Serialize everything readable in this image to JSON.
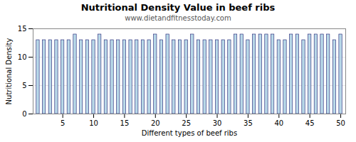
{
  "chart_data": {
    "type": "bar",
    "title": "Nutritional Density Value in beef ribs",
    "subtitle": "www.dietandfitnesstoday.com",
    "xlabel": "Different types of beef ribs",
    "ylabel": "Nutritional Density",
    "x": [
      1,
      2,
      3,
      4,
      5,
      6,
      7,
      8,
      9,
      10,
      11,
      12,
      13,
      14,
      15,
      16,
      17,
      18,
      19,
      20,
      21,
      22,
      23,
      24,
      25,
      26,
      27,
      28,
      29,
      30,
      31,
      32,
      33,
      34,
      35,
      36,
      37,
      38,
      39,
      40,
      41,
      42,
      43,
      44,
      45,
      46,
      47,
      48,
      49,
      50
    ],
    "values": [
      13,
      13,
      13,
      13,
      13,
      13,
      14,
      13,
      13,
      13,
      14,
      13,
      13,
      13,
      13,
      13,
      13,
      13,
      13,
      14,
      13,
      14,
      13,
      13,
      13,
      14,
      13,
      13,
      13,
      13,
      13,
      13,
      14,
      14,
      13,
      14,
      14,
      14,
      14,
      13,
      13,
      14,
      14,
      13,
      14,
      14,
      14,
      14,
      13,
      14
    ],
    "color": "#b8d8e8",
    "xlim": [
      0.2,
      50.8
    ],
    "xticks": [
      5,
      10,
      15,
      20,
      25,
      30,
      35,
      40,
      45,
      50
    ],
    "ylim": [
      0,
      15
    ],
    "yticks": [
      0,
      5,
      10,
      15
    ],
    "grid": true
  }
}
